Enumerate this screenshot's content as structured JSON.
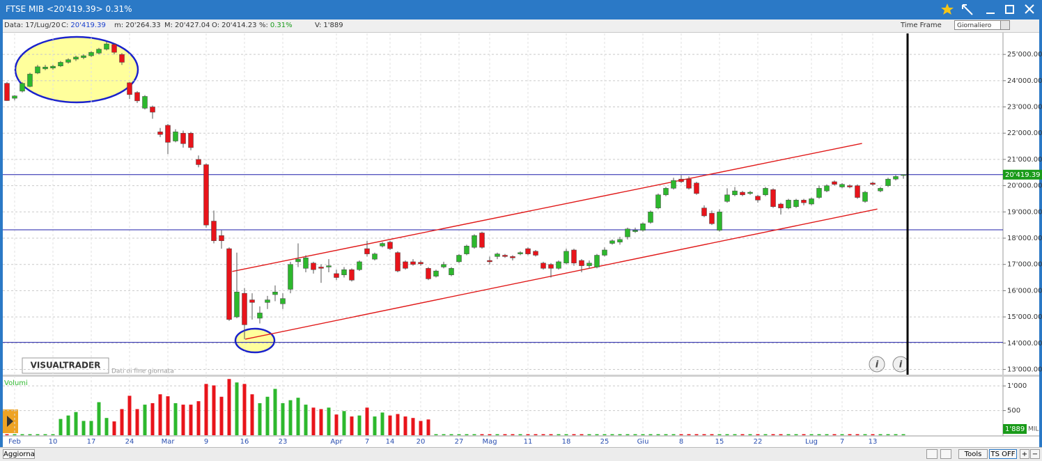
{
  "window": {
    "title": "FTSE MIB <20'419.39> 0.31%"
  },
  "info_bar": {
    "items": [
      {
        "label": "Data:",
        "value": "17/Lug/20"
      },
      {
        "label": "C:",
        "value": "20'419.39"
      },
      {
        "label": "m:",
        "value": "20'264.33"
      },
      {
        "label": "M:",
        "value": "20'427.04"
      },
      {
        "label": "O:",
        "value": "20'414.23"
      },
      {
        "label": "%:",
        "value": "0.31%"
      },
      {
        "label": "V:",
        "value": "1'889"
      }
    ],
    "time_frame_label": "Time Frame",
    "time_frame_value": "Giornaliero"
  },
  "footer": {
    "refresh": "Aggiorna",
    "tools": "Tools",
    "ts": "TS OFF"
  },
  "chart_data": [
    {
      "type": "candlestick",
      "watermark": "VISUALTRADER",
      "note": "Dati di fine giornata",
      "categories": [
        null,
        "Feb",
        null,
        null,
        null,
        null,
        "10",
        null,
        null,
        null,
        null,
        "17",
        null,
        null,
        null,
        null,
        "24",
        null,
        null,
        null,
        null,
        "Mar",
        null,
        null,
        null,
        null,
        "9",
        null,
        null,
        null,
        null,
        "16",
        null,
        null,
        null,
        null,
        "23",
        null,
        null,
        null,
        null,
        null,
        null,
        "Apr",
        null,
        null,
        null,
        "7",
        null,
        null,
        "14",
        null,
        null,
        null,
        "20",
        null,
        null,
        null,
        null,
        "27",
        null,
        null,
        null,
        "Mag",
        null,
        null,
        null,
        null,
        "11",
        null,
        null,
        null,
        null,
        "18",
        null,
        null,
        null,
        null,
        "25",
        null,
        null,
        null,
        null,
        "Giu",
        null,
        null,
        null,
        null,
        "8",
        null,
        null,
        null,
        null,
        "15",
        null,
        null,
        null,
        null,
        "22",
        null,
        null,
        null,
        null,
        null,
        null,
        "Lug",
        null,
        null,
        null,
        "7",
        null,
        null,
        null,
        "13",
        null,
        null,
        null,
        null
      ],
      "open": [
        23900,
        23330,
        23600,
        23780,
        24290,
        24450,
        24480,
        24560,
        24700,
        24820,
        24880,
        24950,
        25050,
        25200,
        25380,
        25000,
        23920,
        23550,
        22950,
        23000,
        22050,
        22300,
        21700,
        22000,
        22000,
        21000,
        20800,
        18650,
        18100,
        17600,
        15000,
        15900,
        15650,
        14950,
        15550,
        15850,
        15500,
        16050,
        17100,
        16850,
        17050,
        16900,
        16900,
        16650,
        16600,
        16800,
        16800,
        17600,
        17200,
        17700,
        17850,
        17450,
        17100,
        17100,
        17080,
        16850,
        16550,
        16900,
        16600,
        17100,
        17400,
        17650,
        18200,
        17150,
        17300,
        17350,
        17300,
        17400,
        17600,
        17500,
        17050,
        17000,
        16850,
        17050,
        17550,
        17150,
        16950,
        16900,
        17350,
        17800,
        17850,
        18050,
        18250,
        18300,
        18600,
        19150,
        19650,
        19900,
        20250,
        20250,
        20100,
        19150,
        18950,
        18300,
        19400,
        19650,
        19750,
        19700,
        19600,
        19650,
        19850,
        19300,
        19150,
        19200,
        19450,
        19300,
        19550,
        19800,
        20150,
        19950,
        20000,
        20000,
        19400,
        20100,
        19800,
        20000,
        20250,
        20414.23
      ],
      "high": [
        23950,
        23450,
        23950,
        24300,
        24600,
        24600,
        24600,
        24750,
        24850,
        24950,
        25000,
        25120,
        25250,
        25480,
        25420,
        25050,
        23950,
        23600,
        23450,
        23050,
        22200,
        22350,
        22150,
        22100,
        22050,
        21150,
        20850,
        19050,
        18300,
        17650,
        17450,
        16100,
        15900,
        15400,
        15800,
        16200,
        15900,
        17100,
        17800,
        17350,
        17100,
        17000,
        17200,
        16800,
        16900,
        16850,
        17150,
        17900,
        17450,
        17850,
        17900,
        17500,
        17150,
        17200,
        17150,
        16900,
        16800,
        17100,
        16900,
        17400,
        17750,
        18150,
        18250,
        17300,
        17450,
        17400,
        17350,
        17500,
        17650,
        17550,
        17100,
        17050,
        17150,
        17600,
        17600,
        17200,
        17150,
        17400,
        17650,
        17950,
        18050,
        18400,
        18400,
        18600,
        19050,
        19700,
        19950,
        20300,
        20400,
        20350,
        20150,
        19250,
        19050,
        19100,
        19900,
        19950,
        19800,
        19800,
        19650,
        19950,
        19900,
        19350,
        19500,
        19500,
        19500,
        19550,
        20000,
        20050,
        20200,
        20100,
        20050,
        20050,
        19800,
        20150,
        19950,
        20300,
        20400,
        20427.04
      ],
      "low": [
        23230,
        23250,
        23550,
        23750,
        24250,
        24400,
        24420,
        24520,
        24650,
        24750,
        24820,
        24900,
        25000,
        25150,
        25000,
        24600,
        23300,
        23150,
        22900,
        22550,
        21850,
        21200,
        21650,
        21450,
        21350,
        20700,
        18400,
        17800,
        17600,
        14850,
        14950,
        14150,
        14900,
        14750,
        15300,
        15600,
        15300,
        15900,
        16900,
        16700,
        16650,
        16300,
        16700,
        16400,
        16500,
        16350,
        16750,
        17300,
        17150,
        17650,
        17550,
        16700,
        16800,
        16950,
        16950,
        16400,
        16500,
        16850,
        16550,
        17050,
        17350,
        17600,
        17600,
        17000,
        17200,
        17250,
        17150,
        17350,
        17350,
        17300,
        16800,
        16500,
        16800,
        17000,
        16950,
        16700,
        16850,
        16850,
        17300,
        17750,
        17750,
        17950,
        18200,
        18250,
        18550,
        19100,
        19600,
        19850,
        20100,
        19850,
        19650,
        18800,
        18500,
        18250,
        19350,
        19600,
        19600,
        19650,
        19350,
        19600,
        19150,
        18900,
        19100,
        19150,
        19250,
        19250,
        19500,
        19750,
        20000,
        19900,
        19900,
        19500,
        19350,
        20000,
        19750,
        19950,
        20200,
        20264.33
      ],
      "close": [
        23240,
        23420,
        23900,
        24250,
        24530,
        24520,
        24550,
        24700,
        24800,
        24900,
        24950,
        25080,
        25200,
        25400,
        25080,
        24700,
        23470,
        23230,
        23400,
        22800,
        21950,
        21650,
        22050,
        21600,
        21450,
        20800,
        18500,
        17900,
        17900,
        14900,
        15950,
        14700,
        15550,
        15150,
        15650,
        15950,
        15700,
        17000,
        17200,
        17250,
        16800,
        16850,
        16950,
        16500,
        16800,
        16400,
        17100,
        17400,
        17400,
        17800,
        17600,
        16750,
        16850,
        17000,
        17020,
        16450,
        16750,
        17000,
        16850,
        17350,
        17700,
        18100,
        17650,
        17100,
        17400,
        17300,
        17250,
        17450,
        17400,
        17350,
        16850,
        16850,
        17100,
        17500,
        17050,
        16950,
        17050,
        17350,
        17550,
        17900,
        17950,
        18350,
        18300,
        18550,
        19000,
        19650,
        19900,
        20200,
        20150,
        19900,
        19700,
        18850,
        18550,
        19000,
        19650,
        19800,
        19650,
        19750,
        19450,
        19900,
        19200,
        19150,
        19450,
        19450,
        19350,
        19500,
        19900,
        20000,
        20050,
        20050,
        19950,
        19550,
        19750,
        20050,
        19900,
        20250,
        20350,
        20419.39
      ],
      "up_color": "#2db82d",
      "down_color": "#e8141b",
      "ylim": [
        12800,
        25800
      ],
      "yticks": [
        {
          "value": 13000,
          "label": "13'000.00"
        },
        {
          "value": 14000,
          "label": "14'000.00"
        },
        {
          "value": 15000,
          "label": "15'000.00"
        },
        {
          "value": 16000,
          "label": "16'000.00"
        },
        {
          "value": 17000,
          "label": "17'000.00"
        },
        {
          "value": 18000,
          "label": "18'000.00"
        },
        {
          "value": 19000,
          "label": "19'000.00"
        },
        {
          "value": 20000,
          "label": "20'000.00"
        },
        {
          "value": 21000,
          "label": "21'000.00"
        },
        {
          "value": 22000,
          "label": "22'000.00"
        },
        {
          "value": 23000,
          "label": "23'000.00"
        },
        {
          "value": 24000,
          "label": "24'000.00"
        },
        {
          "value": 25000,
          "label": "25'000.00"
        }
      ],
      "grid": true,
      "hlines": [
        20419.39,
        18320,
        14030
      ],
      "hline_color": "#1c1ca8",
      "last_price_label": "20'419.39",
      "trendlines": [
        {
          "x": [
            29.4,
            111.6
          ],
          "y": [
            16730,
            21610
          ]
        },
        {
          "x": [
            31.1,
            113.6
          ],
          "y": [
            14150,
            19110
          ]
        }
      ],
      "trend_color": "#e01818"
    },
    {
      "type": "bar",
      "title": "Volumi",
      "values": [
        0,
        0,
        0,
        0,
        0,
        0,
        0,
        330,
        400,
        470,
        290,
        290,
        670,
        350,
        280,
        530,
        800,
        530,
        620,
        650,
        830,
        790,
        650,
        620,
        620,
        690,
        1040,
        1010,
        780,
        1140,
        1070,
        1040,
        830,
        650,
        780,
        940,
        650,
        710,
        760,
        620,
        560,
        530,
        560,
        420,
        490,
        380,
        400,
        560,
        380,
        460,
        400,
        430,
        380,
        350,
        290,
        320,
        0,
        0,
        0,
        0,
        0,
        0,
        0,
        0,
        0,
        0,
        0,
        0,
        0,
        0,
        0,
        0,
        0,
        0,
        0,
        0,
        0,
        0,
        0,
        0,
        0,
        0,
        0,
        0,
        0,
        0,
        0,
        0,
        0,
        0,
        0,
        0,
        0,
        0,
        0,
        0,
        0,
        0,
        0,
        0,
        0,
        0,
        0,
        0,
        0,
        0,
        0,
        0,
        0,
        0,
        0,
        0,
        0,
        0,
        0,
        0,
        0,
        0
      ],
      "ylim": [
        0,
        1200
      ],
      "yticks": [
        {
          "value": 1000,
          "label": "1'000"
        },
        500
      ],
      "grid": true,
      "last_value_label": "1'889",
      "unit_label": "MIL"
    }
  ]
}
